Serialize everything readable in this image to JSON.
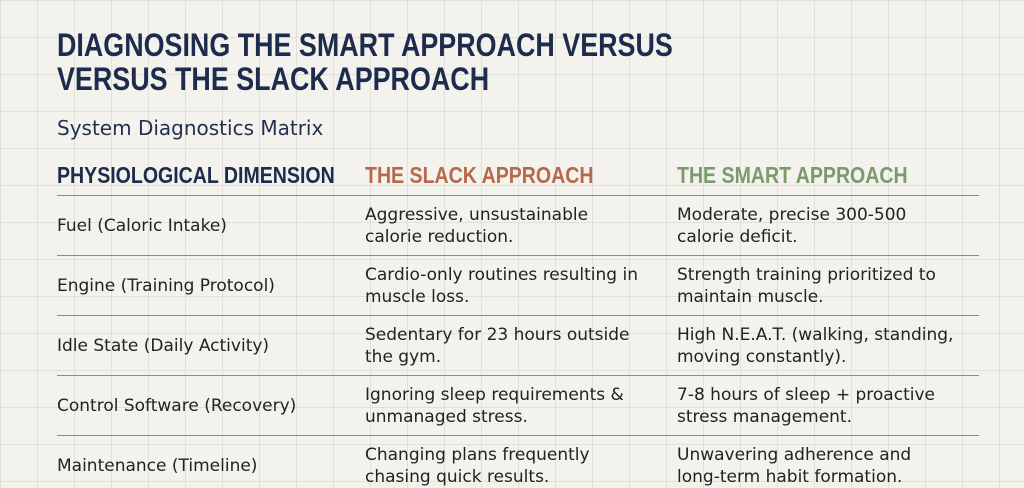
{
  "header": {
    "title_lines": [
      "DIAGNOSING THE SMART APPROACH VERSUS",
      "VERSUS THE SLACK APPROACH"
    ],
    "subtitle": "System Diagnostics Matrix"
  },
  "table": {
    "columns": [
      "PHYSIOLOGICAL DIMENSION",
      "THE SLACK APPROACH",
      "THE SMART APPROACH"
    ],
    "rows": [
      [
        [
          "Fuel (Caloric Intake)"
        ],
        [
          "Aggressive, unsustainable",
          "calorie reduction."
        ],
        [
          "Moderate, precise 300-500",
          "calorie deficit."
        ]
      ],
      [
        [
          "Engine (Training Protocol)"
        ],
        [
          "Cardio-only routines resulting in",
          "muscle loss."
        ],
        [
          "Strength training prioritized to",
          "maintain muscle."
        ]
      ],
      [
        [
          "Idle State (Daily Activity)"
        ],
        [
          "Sedentary for 23 hours outside",
          "the gym."
        ],
        [
          "High N.E.A.T. (walking, standing,",
          "moving constantly)."
        ]
      ],
      [
        [
          "Control Software (Recovery)"
        ],
        [
          "Ignoring sleep requirements &",
          "unmanaged stress."
        ],
        [
          "7-8 hours of sleep + proactive",
          "stress management."
        ]
      ],
      [
        [
          "Maintenance (Timeline)"
        ],
        [
          "Changing plans frequently",
          "chasing quick results."
        ],
        [
          "Unwavering adherence and",
          "long-term habit formation."
        ]
      ]
    ]
  }
}
